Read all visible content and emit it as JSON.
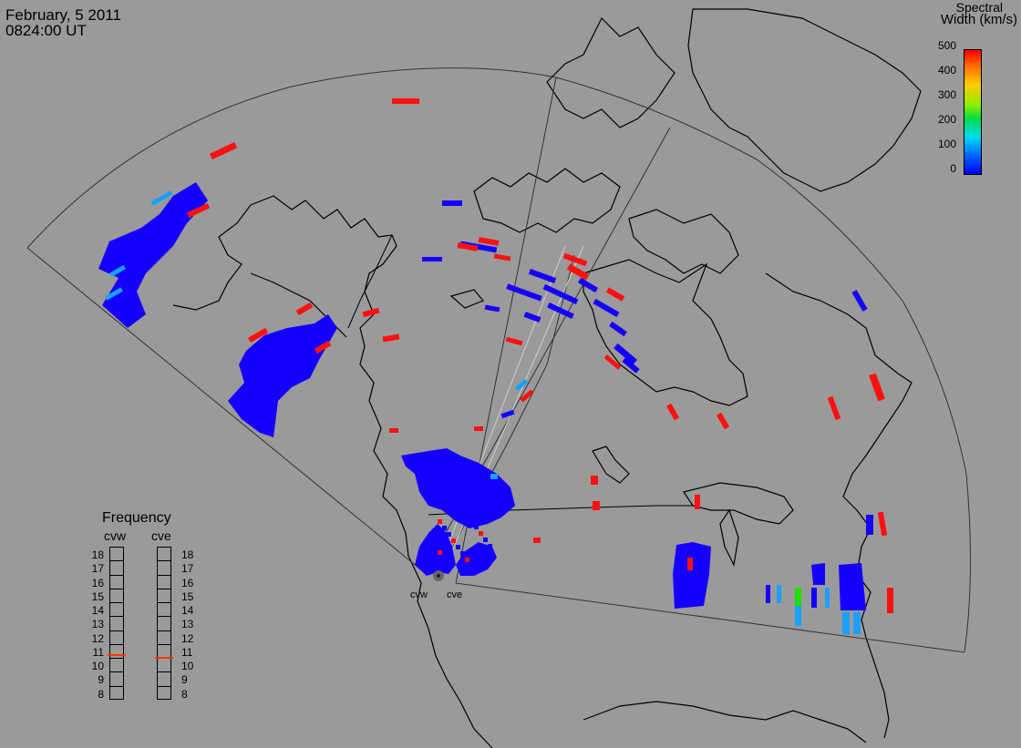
{
  "header": {
    "date": "February, 5 2011",
    "time": "0824:00 UT"
  },
  "colorbar": {
    "title_line1": "Spectral",
    "title_line2": "Width (km/s)",
    "ticks": [
      "500",
      "400",
      "300",
      "200",
      "100",
      "0"
    ],
    "colors": [
      "#ff0000",
      "#ff8800",
      "#ffee00",
      "#00dd00",
      "#00ddff",
      "#0000ff"
    ]
  },
  "radar_sites": [
    {
      "name": "cvw"
    },
    {
      "name": "cve"
    }
  ],
  "frequency_panel": {
    "title": "Frequency",
    "radars": [
      "cvw",
      "cve"
    ],
    "ticks": [
      "18",
      "17",
      "16",
      "15",
      "14",
      "13",
      "12",
      "11",
      "10",
      "9",
      "8"
    ],
    "range_mhz": [
      8,
      18
    ],
    "cvw_frequency_mhz": 10.8,
    "cve_frequency_mhz": 10.6,
    "marker_color": "#ff3300"
  },
  "map_colors": {
    "background": "#9a9a9a",
    "coast": "#000000",
    "fov": "#333333",
    "beam": "#cfcfcf"
  }
}
